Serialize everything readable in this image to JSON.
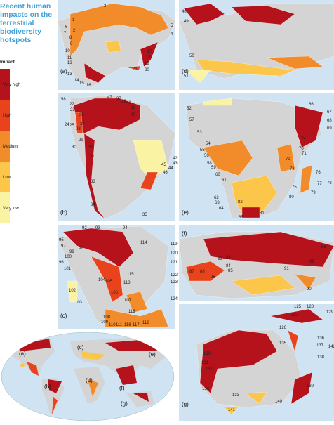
{
  "title": "Recent human impacts on the terrestrial biodiversity hotspots",
  "legend": {
    "title": "Impact",
    "levels": [
      {
        "label": "Very high",
        "color": "#b5121b"
      },
      {
        "label": "High",
        "color": "#e8431c"
      },
      {
        "label": "Medium",
        "color": "#f28b2a"
      },
      {
        "label": "Low",
        "color": "#fbc64a"
      },
      {
        "label": "Very low",
        "color": "#fbf3a4"
      }
    ]
  },
  "panels": [
    {
      "label": "(a)",
      "hotspots": [
        1,
        2,
        3,
        4,
        5,
        6,
        7,
        8,
        9,
        10,
        11,
        12,
        13,
        14,
        15,
        16,
        17,
        18,
        19,
        20,
        21
      ]
    },
    {
      "label": "(d)",
      "hotspots": [
        48,
        49,
        50,
        51
      ]
    },
    {
      "label": "(b)",
      "hotspots": [
        22,
        23,
        24,
        25,
        26,
        27,
        28,
        29,
        30,
        31,
        32,
        33,
        34,
        35,
        36,
        37,
        39,
        40,
        41,
        42,
        43,
        44,
        45,
        46,
        47,
        58
      ]
    },
    {
      "label": "(e)",
      "hotspots": [
        52,
        53,
        54,
        55,
        56,
        57,
        58,
        59,
        60,
        61,
        62,
        63,
        64,
        65,
        66,
        67,
        68,
        69,
        70,
        71,
        72,
        73,
        74,
        75,
        76,
        77,
        78,
        79,
        80,
        81,
        82
      ]
    },
    {
      "label": "(c)",
      "hotspots": [
        92,
        93,
        94,
        95,
        96,
        97,
        98,
        99,
        100,
        101,
        102,
        103,
        104,
        105,
        106,
        107,
        108,
        109,
        110,
        111,
        112,
        113,
        114,
        115,
        116,
        117,
        118,
        119,
        120,
        121,
        122,
        123,
        124
      ]
    },
    {
      "label": "(f)",
      "hotspots": [
        82,
        83,
        84,
        85,
        86,
        87,
        88,
        89,
        90,
        91,
        95
      ]
    },
    {
      "label": "(g)",
      "hotspots": [
        125,
        126,
        127,
        128,
        129,
        130,
        131,
        132,
        133,
        134,
        135,
        136,
        137,
        138,
        139,
        140,
        141,
        142
      ]
    }
  ],
  "overview": {
    "labels": [
      "(a)",
      "(b)",
      "(c)",
      "(d)",
      "(e)",
      "(f)",
      "(g)"
    ]
  }
}
